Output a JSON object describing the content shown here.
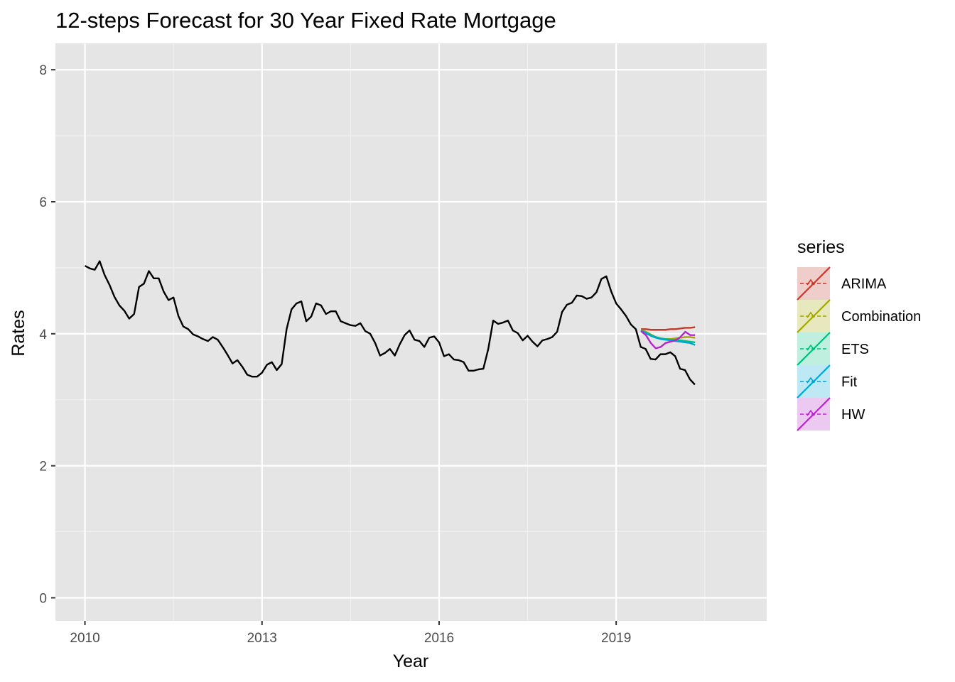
{
  "chart_data": {
    "type": "line",
    "title": "12-steps Forecast for 30 Year Fixed Rate Mortgage",
    "xlabel": "Year",
    "ylabel": "Rates",
    "xlim": [
      2009.5,
      2021.55
    ],
    "ylim": [
      -0.35,
      8.4
    ],
    "x_ticks": [
      2010,
      2013,
      2016,
      2019
    ],
    "x_tick_labels": [
      "2010",
      "2013",
      "2016",
      "2019"
    ],
    "y_ticks": [
      0,
      2,
      4,
      6,
      8
    ],
    "y_tick_labels": [
      "0",
      "2",
      "4",
      "6",
      "8"
    ],
    "grid": true,
    "legend": {
      "title": "series",
      "placement": "right",
      "entries": [
        "ARIMA",
        "Combination",
        "ETS",
        "Fit",
        "HW"
      ]
    },
    "actual": {
      "color": "#000000",
      "x_start": 2010.0,
      "step": 0.08333,
      "values": [
        5.03,
        4.99,
        4.97,
        5.1,
        4.89,
        4.74,
        4.56,
        4.43,
        4.35,
        4.23,
        4.3,
        4.71,
        4.76,
        4.95,
        4.84,
        4.84,
        4.64,
        4.51,
        4.55,
        4.27,
        4.11,
        4.07,
        3.99,
        3.96,
        3.92,
        3.89,
        3.95,
        3.91,
        3.8,
        3.68,
        3.55,
        3.6,
        3.5,
        3.38,
        3.35,
        3.35,
        3.41,
        3.53,
        3.57,
        3.45,
        3.54,
        4.07,
        4.37,
        4.46,
        4.49,
        4.19,
        4.26,
        4.46,
        4.43,
        4.3,
        4.34,
        4.34,
        4.19,
        4.16,
        4.13,
        4.12,
        4.16,
        4.04,
        4.0,
        3.86,
        3.67,
        3.71,
        3.77,
        3.67,
        3.84,
        3.98,
        4.05,
        3.91,
        3.89,
        3.8,
        3.94,
        3.96,
        3.87,
        3.66,
        3.69,
        3.61,
        3.6,
        3.57,
        3.44,
        3.44,
        3.46,
        3.47,
        3.77,
        4.2,
        4.15,
        4.17,
        4.2,
        4.05,
        4.01,
        3.9,
        3.97,
        3.88,
        3.81,
        3.9,
        3.92,
        3.95,
        4.03,
        4.33,
        4.44,
        4.47,
        4.58,
        4.57,
        4.53,
        4.55,
        4.63,
        4.83,
        4.87,
        4.64,
        4.46,
        4.37,
        4.27,
        4.14,
        4.07,
        3.8,
        3.77,
        3.62,
        3.61,
        3.69,
        3.69,
        3.72,
        3.66,
        3.47,
        3.45,
        3.31,
        3.23
      ]
    },
    "series": [
      {
        "name": "ARIMA",
        "color": "#C0392B",
        "x_start": 2019.42,
        "step": 0.08333,
        "values": [
          4.07,
          4.07,
          4.06,
          4.06,
          4.06,
          4.06,
          4.07,
          4.07,
          4.08,
          4.09,
          4.09,
          4.1
        ]
      },
      {
        "name": "Combination",
        "color": "#A3A500",
        "x_start": 2019.42,
        "step": 0.08333,
        "values": [
          4.06,
          4.03,
          3.99,
          3.95,
          3.93,
          3.92,
          3.92,
          3.93,
          3.94,
          3.95,
          3.95,
          3.94
        ]
      },
      {
        "name": "ETS",
        "color": "#00BF7D",
        "x_start": 2019.42,
        "step": 0.08333,
        "values": [
          4.05,
          4.02,
          3.98,
          3.95,
          3.93,
          3.92,
          3.91,
          3.91,
          3.9,
          3.89,
          3.88,
          3.87
        ]
      },
      {
        "name": "Fit",
        "color": "#00A5D6",
        "x_start": 2019.42,
        "step": 0.08333,
        "values": [
          4.05,
          4.01,
          3.97,
          3.94,
          3.92,
          3.91,
          3.9,
          3.89,
          3.88,
          3.87,
          3.86,
          3.83
        ]
      },
      {
        "name": "HW",
        "color": "#B526C8",
        "x_start": 2019.42,
        "step": 0.08333,
        "values": [
          4.04,
          3.98,
          3.86,
          3.78,
          3.8,
          3.86,
          3.88,
          3.9,
          3.95,
          4.03,
          3.98,
          3.98
        ]
      }
    ]
  }
}
